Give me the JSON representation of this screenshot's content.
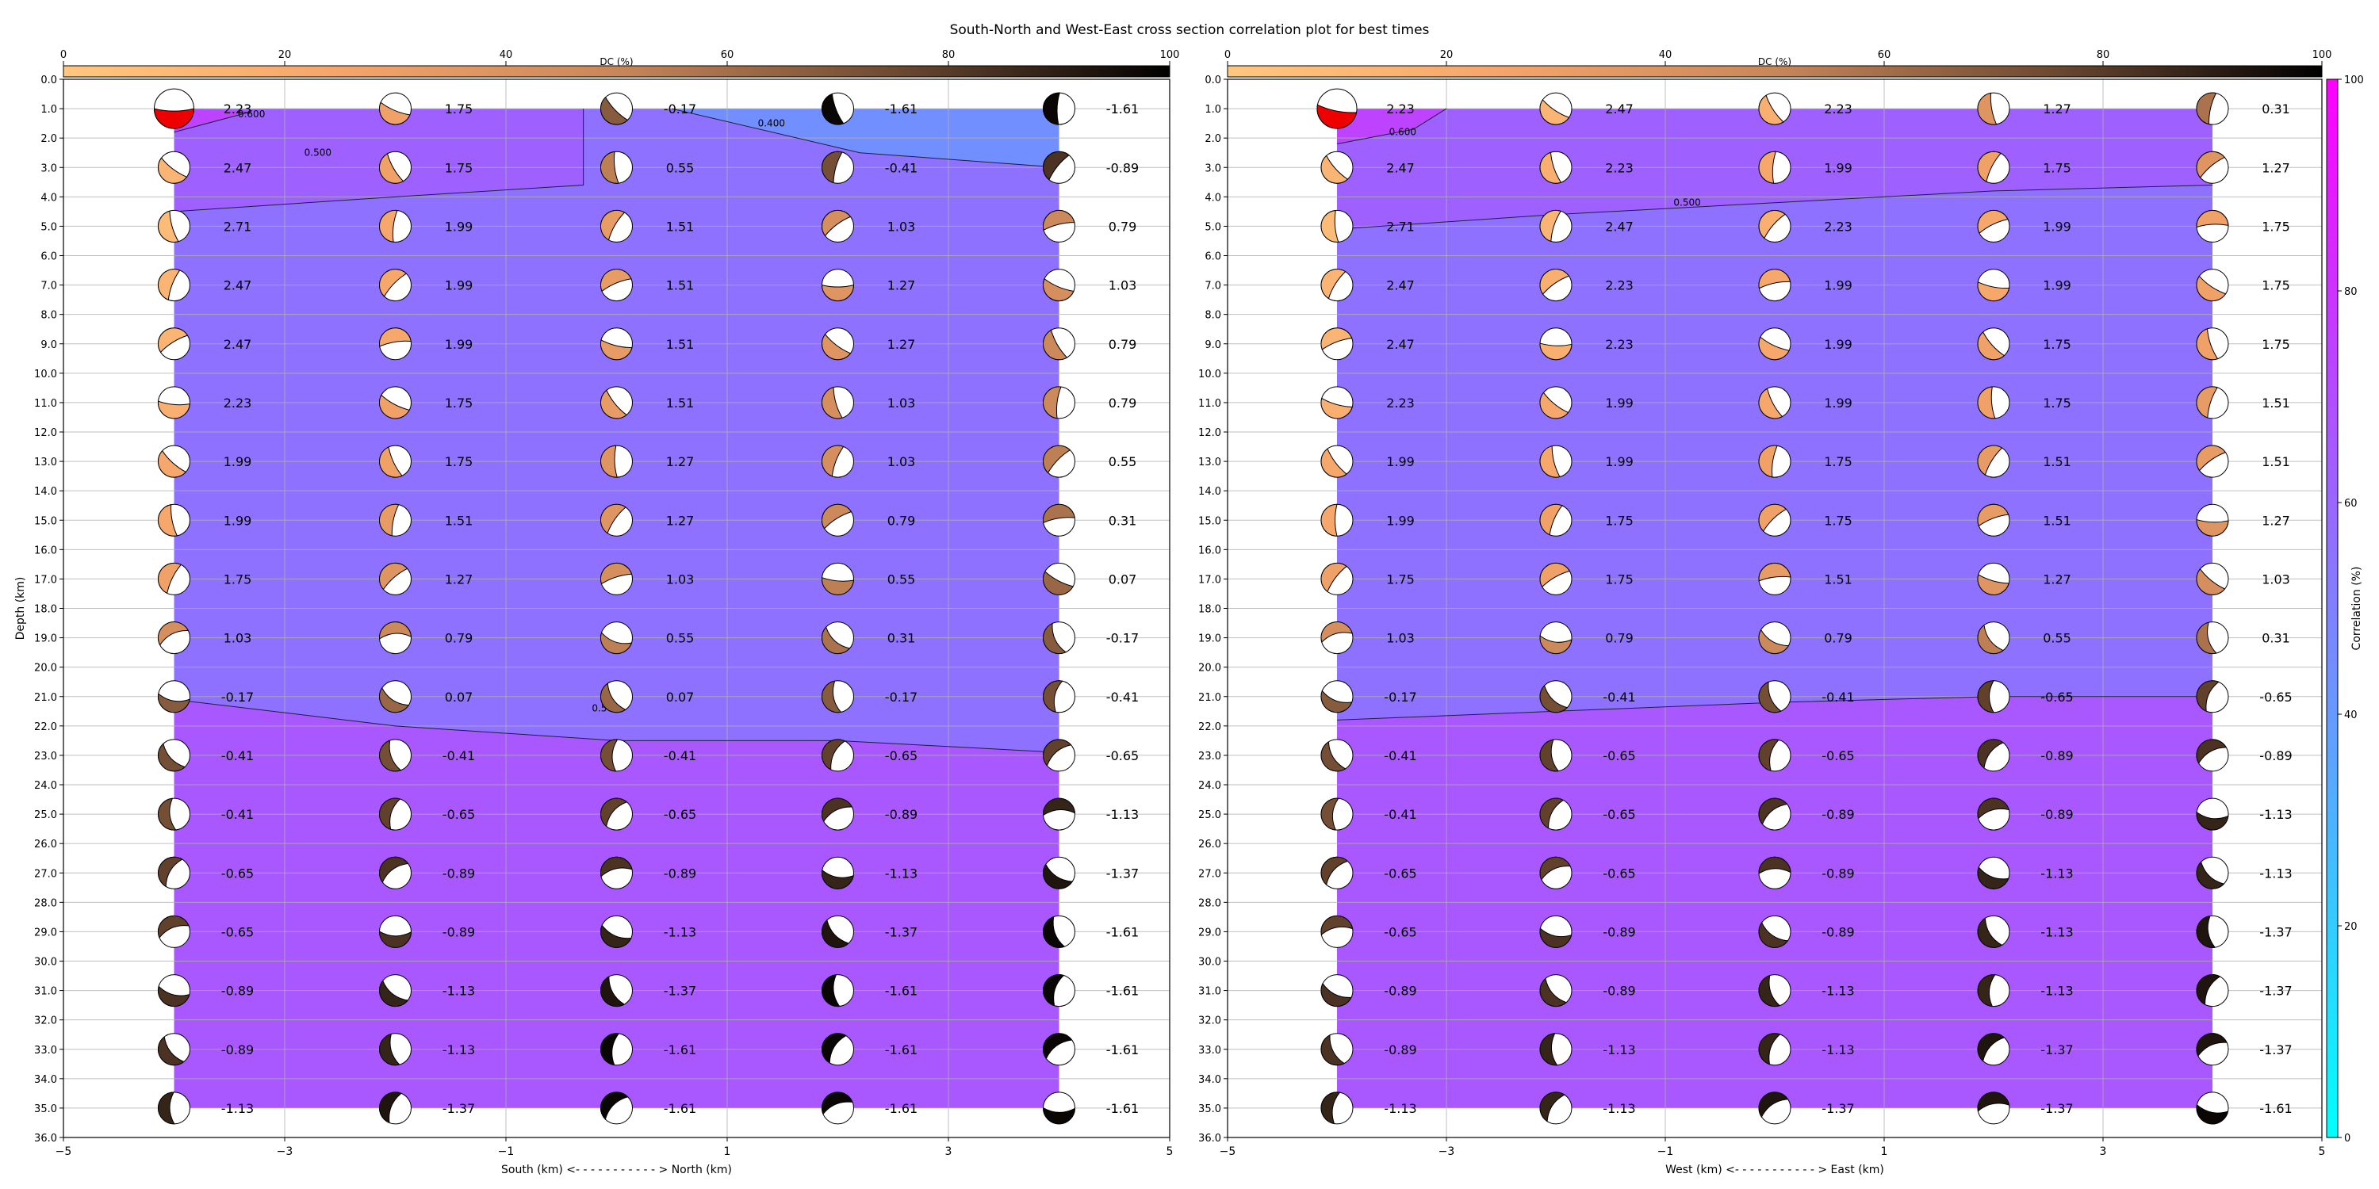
{
  "title": "South-North and West-East cross section correlation plot for best times",
  "chart_data": [
    {
      "type": "heatmap",
      "panel": "south-north",
      "xlabel": "South (km) <- - - - - - - - - - - > North (km)",
      "ylabel": "Depth (km)",
      "xlim": [
        -5,
        5
      ],
      "ylim": [
        36,
        0
      ],
      "x_ticks": [
        "−5",
        "−3",
        "−1",
        "1",
        "3",
        "5"
      ],
      "colorbar": {
        "label": "DC (%)",
        "ticks": [
          "0",
          "20",
          "40",
          "60",
          "80",
          "100"
        ],
        "colormap": "copper_r"
      },
      "x": [
        -4,
        -2,
        0,
        2,
        4
      ],
      "depths": [
        1,
        3,
        5,
        7,
        9,
        11,
        13,
        15,
        17,
        19,
        21,
        23,
        25,
        27,
        29,
        31,
        33,
        35
      ],
      "values": [
        [
          "2.23",
          "1.75",
          "-0.17",
          "-1.61",
          "-1.61"
        ],
        [
          "2.47",
          "1.75",
          "0.55",
          "-0.41",
          "-0.89"
        ],
        [
          "2.71",
          "1.99",
          "1.51",
          "1.03",
          "0.79"
        ],
        [
          "2.47",
          "1.99",
          "1.51",
          "1.27",
          "1.03"
        ],
        [
          "2.47",
          "1.99",
          "1.51",
          "1.27",
          "0.79"
        ],
        [
          "2.23",
          "1.75",
          "1.51",
          "1.03",
          "0.79"
        ],
        [
          "1.99",
          "1.75",
          "1.27",
          "1.03",
          "0.55"
        ],
        [
          "1.99",
          "1.51",
          "1.27",
          "0.79",
          "0.31"
        ],
        [
          "1.75",
          "1.27",
          "1.03",
          "0.55",
          "0.07"
        ],
        [
          "1.03",
          "0.79",
          "0.55",
          "0.31",
          "-0.17"
        ],
        [
          "-0.17",
          "0.07",
          "0.07",
          "-0.17",
          "-0.41"
        ],
        [
          "-0.41",
          "-0.41",
          "-0.41",
          "-0.65",
          "-0.65"
        ],
        [
          "-0.41",
          "-0.65",
          "-0.65",
          "-0.89",
          "-1.13"
        ],
        [
          "-0.65",
          "-0.89",
          "-0.89",
          "-1.13",
          "-1.37"
        ],
        [
          "-0.65",
          "-0.89",
          "-1.13",
          "-1.37",
          "-1.61"
        ],
        [
          "-0.89",
          "-1.13",
          "-1.37",
          "-1.61",
          "-1.61"
        ],
        [
          "-0.89",
          "-1.13",
          "-1.61",
          "-1.61",
          "-1.61"
        ],
        [
          "-1.13",
          "-1.37",
          "-1.61",
          "-1.61",
          "-1.61"
        ]
      ],
      "contours": [
        {
          "label": "0.400",
          "points": [
            [
              0.5,
              1
            ],
            [
              2.2,
              2.5
            ],
            [
              4,
              3
            ]
          ]
        },
        {
          "label": "0.500",
          "points": [
            [
              -4,
              4.5
            ],
            [
              -2,
              4
            ],
            [
              -0.3,
              3.6
            ],
            [
              -0.3,
              1
            ]
          ]
        },
        {
          "label": "0.500",
          "points": [
            [
              -4,
              21.1
            ],
            [
              -2,
              22.0
            ],
            [
              0,
              22.5
            ],
            [
              2,
              22.5
            ],
            [
              4,
              22.9
            ]
          ]
        },
        {
          "label": "0.600",
          "points": [
            [
              -4,
              1.8
            ],
            [
              -3.3,
              1.1
            ]
          ]
        }
      ],
      "contour_label_positions": [
        [
          1.4,
          1.6
        ],
        [
          -2.7,
          2.6
        ],
        [
          -0.1,
          21.5
        ],
        [
          -3.3,
          1.3
        ]
      ]
    },
    {
      "type": "heatmap",
      "panel": "west-east",
      "xlabel": "West (km) <- - - - - - - - - - - > East (km)",
      "ylabel": "",
      "xlim": [
        -5,
        5
      ],
      "ylim": [
        36,
        0
      ],
      "x_ticks": [
        "−5",
        "−3",
        "−1",
        "1",
        "3",
        "5"
      ],
      "colorbar": {
        "label": "DC (%)",
        "ticks": [
          "0",
          "20",
          "40",
          "60",
          "80",
          "100"
        ],
        "colormap": "copper_r"
      },
      "right_colorbar": {
        "label": "Correlation (%)",
        "ticks": [
          "0",
          "20",
          "40",
          "60",
          "80",
          "100"
        ],
        "colormap": "cool"
      },
      "x": [
        -4,
        -2,
        0,
        2,
        4
      ],
      "depths": [
        1,
        3,
        5,
        7,
        9,
        11,
        13,
        15,
        17,
        19,
        21,
        23,
        25,
        27,
        29,
        31,
        33,
        35
      ],
      "values": [
        [
          "2.23",
          "2.47",
          "2.23",
          "1.27",
          "0.31"
        ],
        [
          "2.47",
          "2.23",
          "1.99",
          "1.75",
          "1.27"
        ],
        [
          "2.71",
          "2.47",
          "2.23",
          "1.99",
          "1.75"
        ],
        [
          "2.47",
          "2.23",
          "1.99",
          "1.99",
          "1.75"
        ],
        [
          "2.47",
          "2.23",
          "1.99",
          "1.75",
          "1.75"
        ],
        [
          "2.23",
          "1.99",
          "1.99",
          "1.75",
          "1.51"
        ],
        [
          "1.99",
          "1.99",
          "1.75",
          "1.51",
          "1.51"
        ],
        [
          "1.99",
          "1.75",
          "1.75",
          "1.51",
          "1.27"
        ],
        [
          "1.75",
          "1.75",
          "1.51",
          "1.27",
          "1.03"
        ],
        [
          "1.03",
          "0.79",
          "0.79",
          "0.55",
          "0.31"
        ],
        [
          "-0.17",
          "-0.41",
          "-0.41",
          "-0.65",
          "-0.65"
        ],
        [
          "-0.41",
          "-0.65",
          "-0.65",
          "-0.89",
          "-0.89"
        ],
        [
          "-0.41",
          "-0.65",
          "-0.89",
          "-0.89",
          "-1.13"
        ],
        [
          "-0.65",
          "-0.65",
          "-0.89",
          "-1.13",
          "-1.13"
        ],
        [
          "-0.65",
          "-0.89",
          "-0.89",
          "-1.13",
          "-1.37"
        ],
        [
          "-0.89",
          "-0.89",
          "-1.13",
          "-1.13",
          "-1.37"
        ],
        [
          "-0.89",
          "-1.13",
          "-1.13",
          "-1.37",
          "-1.37"
        ],
        [
          "-1.13",
          "-1.13",
          "-1.37",
          "-1.37",
          "-1.61"
        ]
      ],
      "contours": [
        {
          "label": "0.500",
          "points": [
            [
              -4,
              5.1
            ],
            [
              -2,
              4.6
            ],
            [
              0,
              4.2
            ],
            [
              2,
              3.8
            ],
            [
              4,
              3.6
            ]
          ]
        },
        {
          "label": "0.600",
          "points": [
            [
              -4,
              2.2
            ],
            [
              -3.3,
              1.7
            ],
            [
              -3,
              1
            ]
          ]
        },
        {
          "label": "",
          "points": [
            [
              -4,
              21.8
            ],
            [
              -2,
              21.5
            ],
            [
              0,
              21.2
            ],
            [
              2,
              21.0
            ],
            [
              4,
              21.0
            ]
          ]
        }
      ],
      "contour_label_positions": [
        [
          -0.8,
          4.3
        ],
        [
          -3.4,
          1.9
        ]
      ]
    }
  ]
}
